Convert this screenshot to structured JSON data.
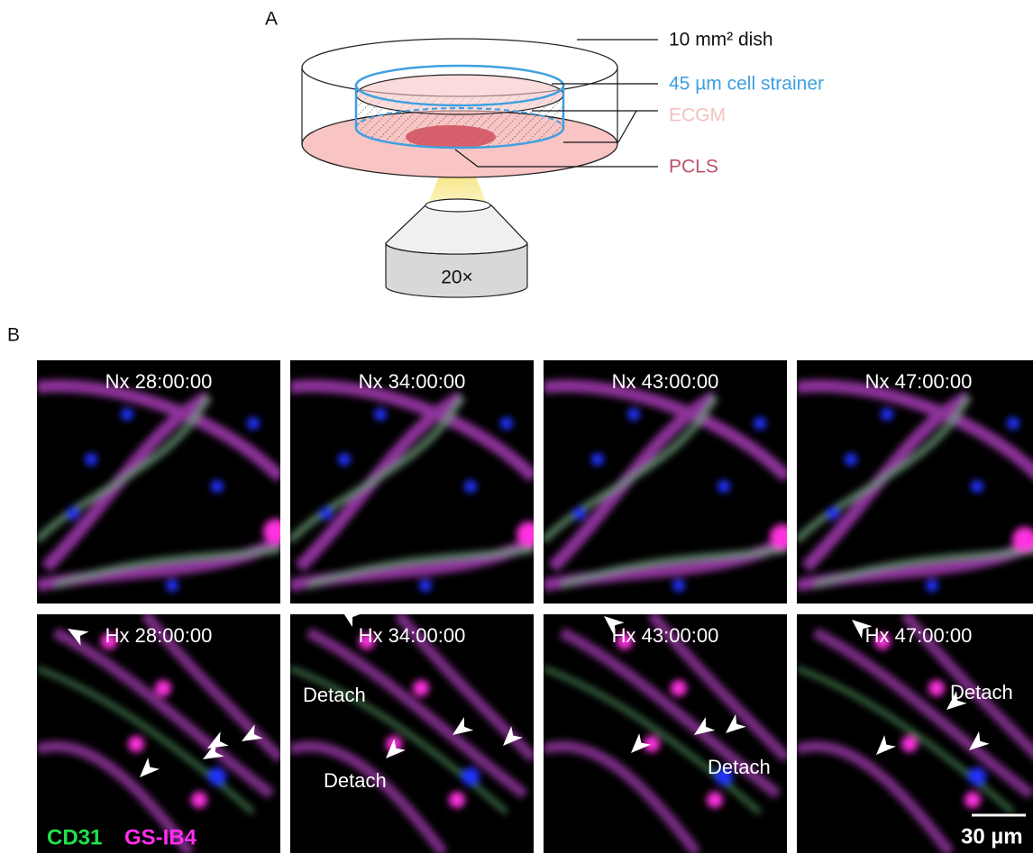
{
  "panel_a": {
    "label": "A",
    "dish": "10 mm² dish",
    "strainer": "45 µm cell strainer",
    "medium": "ECGM",
    "slice": "PCLS",
    "objective": "20×"
  },
  "panel_b": {
    "label": "B",
    "normoxia": [
      "Nx 28:00:00",
      "Nx 34:00:00",
      "Nx 43:00:00",
      "Nx 47:00:00"
    ],
    "hypoxia": [
      "Hx 28:00:00",
      "Hx 34:00:00",
      "Hx 43:00:00",
      "Hx 47:00:00"
    ],
    "annotations": [
      "Detach",
      "Detach",
      "Detach",
      "Detach"
    ],
    "stain_1": "CD31",
    "stain_2": "GS-IB4",
    "scale_bar": "30 µm"
  }
}
